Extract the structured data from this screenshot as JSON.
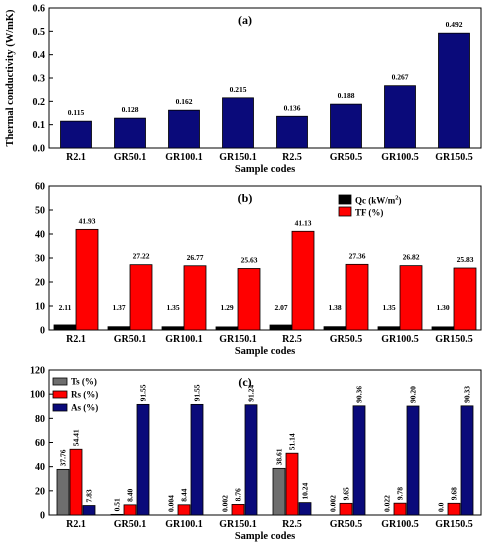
{
  "chart_data": [
    {
      "type": "bar",
      "panel_label": "(a)",
      "categories": [
        "R2.1",
        "GR50.1",
        "GR100.1",
        "GR150.1",
        "R2.5",
        "GR50.5",
        "GR100.5",
        "GR150.5"
      ],
      "series": [
        {
          "values": [
            0.115,
            0.128,
            0.162,
            0.215,
            0.136,
            0.188,
            0.267,
            0.492
          ],
          "labels": [
            "0.115",
            "0.128",
            "0.162",
            "0.215",
            "0.136",
            "0.188",
            "0.267",
            "0.492"
          ],
          "color": "#0a0a7a"
        }
      ],
      "xlabel": "Sample codes",
      "ylabel": "Thermal conductivity (W/mK)",
      "ylim": [
        0.0,
        0.6
      ],
      "yticks": [
        "0.0",
        "0.1",
        "0.2",
        "0.3",
        "0.4",
        "0.5",
        "0.6"
      ],
      "grid": false
    },
    {
      "type": "bar",
      "panel_label": "(b)",
      "categories": [
        "R2.1",
        "GR50.1",
        "GR100.1",
        "GR150.1",
        "R2.5",
        "GR50.5",
        "GR100.5",
        "GR150.5"
      ],
      "series": [
        {
          "name": "Qc (kW/m",
          "name_sup": "2",
          "name_close": ")",
          "values": [
            2.11,
            1.37,
            1.35,
            1.29,
            2.07,
            1.38,
            1.35,
            1.3
          ],
          "labels": [
            "2.11",
            "1.37",
            "1.35",
            "1.29",
            "2.07",
            "1.38",
            "1.35",
            "1.30"
          ],
          "color": "#000000"
        },
        {
          "name": "TF (%)",
          "values": [
            41.93,
            27.22,
            26.77,
            25.63,
            41.13,
            27.36,
            26.82,
            25.83
          ],
          "labels": [
            "41.93",
            "27.22",
            "26.77",
            "25.63",
            "41.13",
            "27.36",
            "26.82",
            "25.83"
          ],
          "color": "#ff0000"
        }
      ],
      "xlabel": "Sample codes",
      "ylim": [
        0,
        60
      ],
      "yticks": [
        "0",
        "10",
        "20",
        "30",
        "40",
        "50",
        "60"
      ],
      "legend": "top-right",
      "grid": false
    },
    {
      "type": "bar",
      "panel_label": "(c)",
      "categories": [
        "R2.1",
        "GR50.1",
        "GR100.1",
        "GR150.1",
        "R2.5",
        "GR50.5",
        "GR100.5",
        "GR150.5"
      ],
      "series": [
        {
          "name": "Ts (%)",
          "values": [
            37.76,
            0.51,
            0.004,
            0.002,
            38.61,
            0.002,
            0.022,
            0.0
          ],
          "labels": [
            "37.76",
            "0.51",
            "0.004",
            "0.002",
            "38.61",
            "0.002",
            "0.022",
            "0.0"
          ],
          "color": "#6e6e6e"
        },
        {
          "name": "Rs (%)",
          "values": [
            54.41,
            8.4,
            8.44,
            8.76,
            51.14,
            9.65,
            9.78,
            9.68
          ],
          "labels": [
            "54.41",
            "8.40",
            "8.44",
            "8.76",
            "51.14",
            "9.65",
            "9.78",
            "9.68"
          ],
          "color": "#ff0000"
        },
        {
          "name": "As (%)",
          "values": [
            7.83,
            91.55,
            91.55,
            91.24,
            10.24,
            90.36,
            90.2,
            90.33
          ],
          "labels": [
            "7.83",
            "91.55",
            "91.55",
            "91.24",
            "10.24",
            "90.36",
            "90.20",
            "90.33"
          ],
          "color": "#0a0a7a"
        }
      ],
      "xlabel": "Sample codes",
      "ylim": [
        0,
        120
      ],
      "yticks": [
        "0",
        "20",
        "40",
        "60",
        "80",
        "100",
        "120"
      ],
      "legend": "top-left",
      "grid": false
    }
  ]
}
